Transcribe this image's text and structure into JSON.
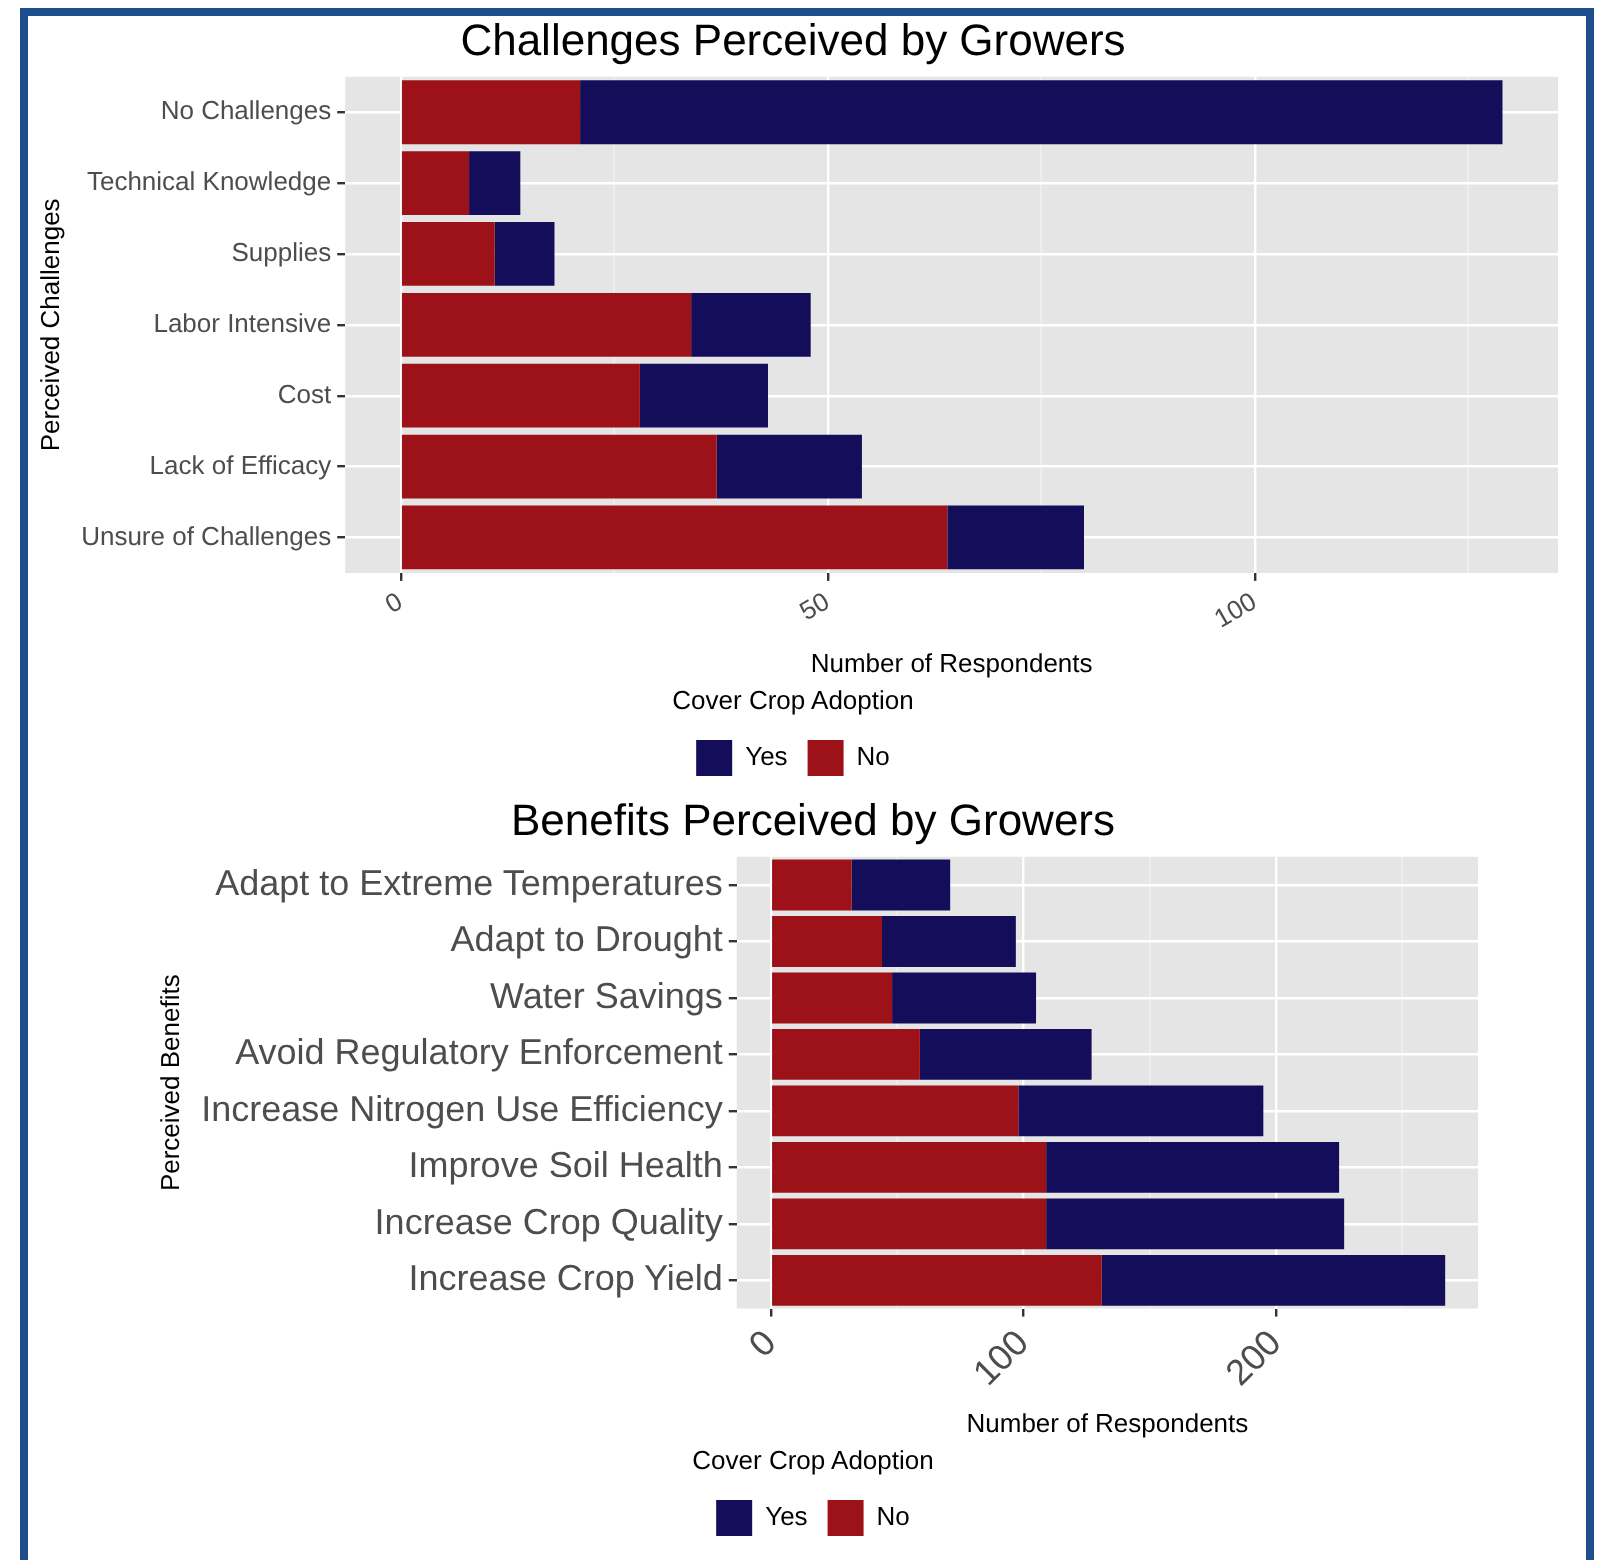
{
  "chart_data": [
    {
      "type": "bar",
      "orientation": "horizontal",
      "stacked": true,
      "title": "Challenges Perceived by Growers",
      "xlabel": "Number of Respondents",
      "ylabel": "Perceived Challenges",
      "legend_title": "Cover Crop Adoption",
      "legend": "bottom",
      "grid": true,
      "categories": [
        "No Challenges",
        "Technical Knowledge",
        "Supplies",
        "Labor Intensive",
        "Cost",
        "Lack of Efficacy",
        "Unsure of Challenges"
      ],
      "series": [
        {
          "name": "No",
          "color": "#9d1219",
          "values": [
            21,
            8,
            11,
            34,
            28,
            37,
            64
          ]
        },
        {
          "name": "Yes",
          "color": "#140d5a",
          "values": [
            108,
            6,
            7,
            14,
            15,
            17,
            16
          ]
        }
      ],
      "xlim": [
        -6.5,
        135.5
      ],
      "xticks": [
        0,
        {
          "value": 25,
          "label": null
        },
        50,
        {
          "value": 75,
          "label": null
        },
        100,
        {
          "value": 125,
          "label": null
        }
      ]
    },
    {
      "type": "bar",
      "orientation": "horizontal",
      "stacked": true,
      "title": "Benefits Perceived by Growers",
      "xlabel": "Number of Respondents",
      "ylabel": "Perceived Benefits",
      "legend_title": "Cover Crop Adoption",
      "legend": "bottom",
      "grid": true,
      "categories": [
        "Adapt to Extreme Temperatures",
        "Adapt to Drought",
        "Water Savings",
        "Avoid Regulatory Enforcement",
        "Increase Nitrogen Use Efficiency",
        "Improve Soil Health",
        "Increase Crop Quality",
        "Increase Crop Yield"
      ],
      "series": [
        {
          "name": "No",
          "color": "#9d1219",
          "values": [
            32,
            44,
            48,
            59,
            98,
            109,
            109,
            131
          ]
        },
        {
          "name": "Yes",
          "color": "#140d5a",
          "values": [
            39,
            53,
            57,
            68,
            97,
            116,
            118,
            136
          ]
        }
      ],
      "xlim": [
        -13.5,
        280
      ],
      "xticks": [
        0,
        {
          "value": 50,
          "label": null
        },
        100,
        {
          "value": 150,
          "label": null
        },
        200,
        {
          "value": 250,
          "label": null
        }
      ]
    }
  ]
}
